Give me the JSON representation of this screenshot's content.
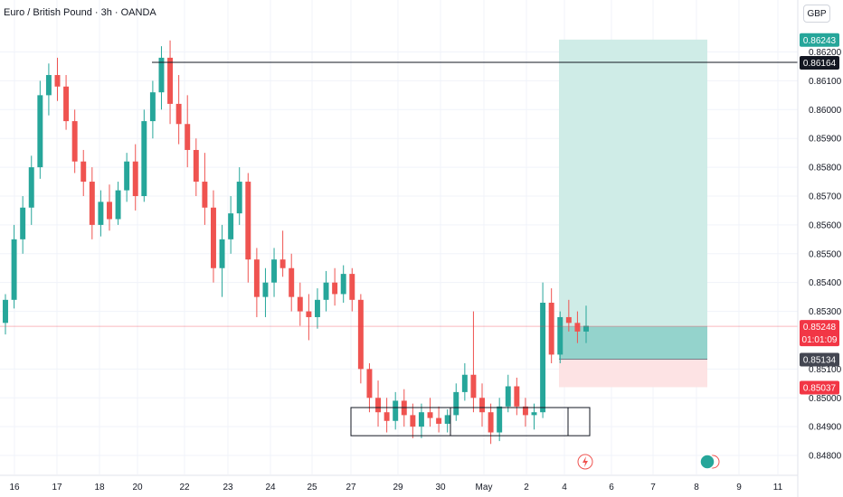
{
  "header": {
    "title": "Euro / British Pound · 3h · OANDA",
    "currency": "GBP"
  },
  "price_tags": {
    "target": "0.86243",
    "level": "0.86164",
    "current": "0.85248",
    "countdown": "01:01:09",
    "entry": "0.85134",
    "stop": "0.85037"
  },
  "event_icons": [
    "flash-icon",
    "earnings-icon"
  ],
  "colors": {
    "up": "#26a69a",
    "down": "#ef5350",
    "profit_zone": "#cfece7",
    "loss_zone": "#fde3e4",
    "level_tag": "#131722",
    "current_tag": "#f23645",
    "entry_tag": "#434651"
  },
  "chart_data": {
    "type": "candlestick",
    "instrument": "Euro / British Pound",
    "timeframe": "3h",
    "source": "OANDA",
    "y_axis": {
      "range": [
        0.8475,
        0.8628
      ],
      "ticks": [
        "0.84800",
        "0.84900",
        "0.85000",
        "0.85100",
        "0.85300",
        "0.85400",
        "0.85500",
        "0.85600",
        "0.85700",
        "0.85800",
        "0.85900",
        "0.86000",
        "0.86100",
        "0.86200"
      ]
    },
    "x_axis": {
      "labels": [
        "16",
        "17",
        "18",
        "20",
        "22",
        "23",
        "24",
        "25",
        "27",
        "29",
        "30",
        "May",
        "2",
        "4",
        "6",
        "7",
        "8",
        "9",
        "11"
      ]
    },
    "candles": [
      [
        0.8526,
        0.8536,
        0.8522,
        0.8534
      ],
      [
        0.8534,
        0.856,
        0.8531,
        0.8555
      ],
      [
        0.8555,
        0.857,
        0.855,
        0.8566
      ],
      [
        0.8566,
        0.8584,
        0.856,
        0.858
      ],
      [
        0.858,
        0.861,
        0.8576,
        0.8605
      ],
      [
        0.8605,
        0.8616,
        0.8598,
        0.8612
      ],
      [
        0.8612,
        0.8618,
        0.8603,
        0.8608
      ],
      [
        0.8608,
        0.8612,
        0.8593,
        0.8596
      ],
      [
        0.8596,
        0.86,
        0.8578,
        0.8582
      ],
      [
        0.8582,
        0.8586,
        0.857,
        0.8575
      ],
      [
        0.8575,
        0.858,
        0.8555,
        0.856
      ],
      [
        0.856,
        0.8572,
        0.8556,
        0.8568
      ],
      [
        0.8568,
        0.8574,
        0.8558,
        0.8562
      ],
      [
        0.8562,
        0.8575,
        0.856,
        0.8572
      ],
      [
        0.8572,
        0.8585,
        0.8568,
        0.8582
      ],
      [
        0.8582,
        0.8588,
        0.8565,
        0.857
      ],
      [
        0.857,
        0.86,
        0.8568,
        0.8596
      ],
      [
        0.8596,
        0.861,
        0.859,
        0.8606
      ],
      [
        0.8606,
        0.8622,
        0.86,
        0.8618
      ],
      [
        0.8618,
        0.8624,
        0.8595,
        0.8602
      ],
      [
        0.8602,
        0.8612,
        0.8588,
        0.8595
      ],
      [
        0.8595,
        0.8605,
        0.858,
        0.8586
      ],
      [
        0.8586,
        0.859,
        0.857,
        0.8575
      ],
      [
        0.8575,
        0.8585,
        0.856,
        0.8566
      ],
      [
        0.8566,
        0.8572,
        0.854,
        0.8545
      ],
      [
        0.8545,
        0.856,
        0.8535,
        0.8555
      ],
      [
        0.8555,
        0.857,
        0.855,
        0.8564
      ],
      [
        0.8564,
        0.858,
        0.856,
        0.8575
      ],
      [
        0.8575,
        0.8578,
        0.854,
        0.8548
      ],
      [
        0.8548,
        0.8552,
        0.8528,
        0.8535
      ],
      [
        0.8535,
        0.8545,
        0.8528,
        0.854
      ],
      [
        0.854,
        0.8552,
        0.8535,
        0.8548
      ],
      [
        0.8548,
        0.8558,
        0.8542,
        0.8545
      ],
      [
        0.8545,
        0.855,
        0.853,
        0.8535
      ],
      [
        0.8535,
        0.854,
        0.8525,
        0.853
      ],
      [
        0.853,
        0.8536,
        0.852,
        0.8528
      ],
      [
        0.8528,
        0.8538,
        0.8524,
        0.8534
      ],
      [
        0.8534,
        0.8544,
        0.853,
        0.854
      ],
      [
        0.854,
        0.8545,
        0.8532,
        0.8536
      ],
      [
        0.8536,
        0.8546,
        0.8533,
        0.8543
      ],
      [
        0.8543,
        0.8545,
        0.853,
        0.8534
      ],
      [
        0.8534,
        0.8536,
        0.8505,
        0.851
      ],
      [
        0.851,
        0.8512,
        0.8495,
        0.85
      ],
      [
        0.85,
        0.8506,
        0.849,
        0.8495
      ],
      [
        0.8495,
        0.85,
        0.8488,
        0.8492
      ],
      [
        0.8492,
        0.8502,
        0.8489,
        0.8499
      ],
      [
        0.8499,
        0.8503,
        0.849,
        0.8494
      ],
      [
        0.8494,
        0.8498,
        0.8486,
        0.849
      ],
      [
        0.849,
        0.8498,
        0.8486,
        0.8495
      ],
      [
        0.8495,
        0.85,
        0.849,
        0.8493
      ],
      [
        0.8493,
        0.8497,
        0.8488,
        0.8491
      ],
      [
        0.8491,
        0.8496,
        0.8488,
        0.8494
      ],
      [
        0.8494,
        0.8505,
        0.8492,
        0.8502
      ],
      [
        0.8502,
        0.8512,
        0.8499,
        0.8508
      ],
      [
        0.8508,
        0.853,
        0.8495,
        0.85
      ],
      [
        0.85,
        0.8505,
        0.849,
        0.8495
      ],
      [
        0.8495,
        0.8498,
        0.8484,
        0.8488
      ],
      [
        0.8488,
        0.85,
        0.8485,
        0.8497
      ],
      [
        0.8497,
        0.8508,
        0.8495,
        0.8504
      ],
      [
        0.8504,
        0.8507,
        0.8494,
        0.8497
      ],
      [
        0.8497,
        0.85,
        0.849,
        0.8494
      ],
      [
        0.8494,
        0.8498,
        0.8489,
        0.8495
      ],
      [
        0.8495,
        0.854,
        0.8493,
        0.8533
      ],
      [
        0.8533,
        0.8538,
        0.8512,
        0.8515
      ],
      [
        0.8515,
        0.853,
        0.8512,
        0.8528
      ],
      [
        0.8528,
        0.8534,
        0.8523,
        0.8526
      ],
      [
        0.8526,
        0.853,
        0.8519,
        0.8523
      ],
      [
        0.8523,
        0.8532,
        0.8519,
        0.8525
      ]
    ],
    "horizontal_level": 0.86164,
    "current_price": 0.85248,
    "long_position": {
      "entry": 0.85134,
      "target": 0.86243,
      "stop": 0.85037
    },
    "support_zone": {
      "top": 0.8496,
      "bottom": 0.849
    }
  }
}
